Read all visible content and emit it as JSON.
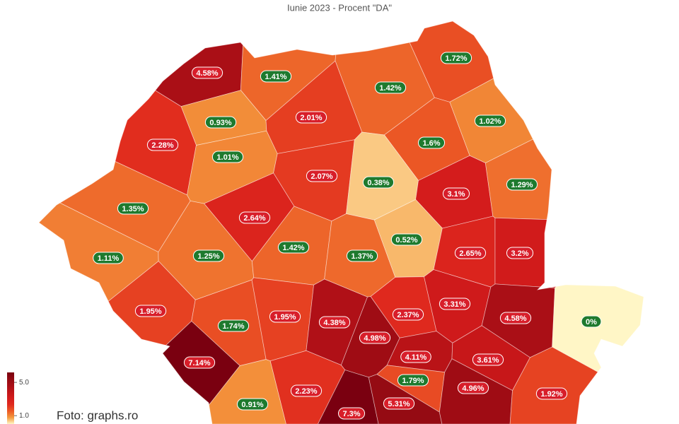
{
  "chart_data": {
    "type": "choropleth",
    "title": "Iunie 2023 - Procent \"DA\"",
    "values": [
      4.58,
      1.41,
      1.42,
      1.72,
      0.93,
      2.01,
      1.02,
      2.28,
      1.01,
      1.6,
      2.07,
      0.38,
      3.1,
      1.29,
      1.35,
      2.64,
      0.52,
      1.11,
      1.25,
      1.42,
      1.37,
      2.65,
      3.2,
      1.95,
      1.74,
      1.95,
      4.38,
      4.98,
      2.37,
      3.31,
      4.58,
      0,
      7.14,
      4.11,
      1.79,
      3.61,
      2.23,
      0.91,
      7.3,
      5.31,
      4.96,
      1.92
    ],
    "value_labels": [
      "4.58%",
      "1.41%",
      "1.42%",
      "1.72%",
      "0.93%",
      "2.01%",
      "1.02%",
      "2.28%",
      "1.01%",
      "1.6%",
      "2.07%",
      "0.38%",
      "3.1%",
      "1.29%",
      "1.35%",
      "2.64%",
      "0.52%",
      "1.11%",
      "1.25%",
      "1.42%",
      "1.37%",
      "2.65%",
      "3.2%",
      "1.95%",
      "1.74%",
      "1.95%",
      "4.38%",
      "4.98%",
      "2.37%",
      "3.31%",
      "4.58%",
      "0%",
      "7.14%",
      "4.11%",
      "1.79%",
      "3.61%",
      "2.23%",
      "0.91%",
      "7.3%",
      "5.31%",
      "4.96%",
      "1.92%"
    ],
    "label_colors": [
      "#d81e2a",
      "#1e7a2e",
      "#1e7a2e",
      "#1e7a2e",
      "#1e7a2e",
      "#d81e2a",
      "#1e7a2e",
      "#d81e2a",
      "#1e7a2e",
      "#1e7a2e",
      "#d81e2a",
      "#1e7a2e",
      "#d81e2a",
      "#1e7a2e",
      "#1e7a2e",
      "#d81e2a",
      "#1e7a2e",
      "#1e7a2e",
      "#1e7a2e",
      "#1e7a2e",
      "#1e7a2e",
      "#d81e2a",
      "#d81e2a",
      "#d81e2a",
      "#1e7a2e",
      "#d81e2a",
      "#d81e2a",
      "#d81e2a",
      "#d81e2a",
      "#d81e2a",
      "#d81e2a",
      "#1e7a2e",
      "#d81e2a",
      "#d81e2a",
      "#1e7a2e",
      "#d81e2a",
      "#d81e2a",
      "#1e7a2e",
      "#d81e2a",
      "#d81e2a",
      "#d81e2a",
      "#d81e2a"
    ],
    "colors": [
      "#fff6c6",
      "#f49a3e",
      "#ec5a26",
      "#e02a1e",
      "#d41c1c",
      "#c01518",
      "#a80e16",
      "#920a12",
      "#7a0010"
    ],
    "clim": [
      0,
      6.2
    ],
    "colorbar_ticks": [
      {
        "value": 5,
        "label": "5.0"
      },
      {
        "value": 1,
        "label": "1.0"
      }
    ],
    "credit": "Foto: graphs.ro"
  }
}
